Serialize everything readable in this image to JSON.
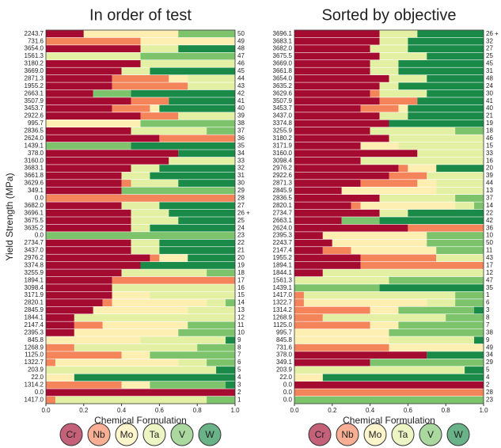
{
  "chart_data": [
    {
      "type": "stacked_barh",
      "title": "In order of test",
      "xlabel": "Chemical Formulation",
      "ylabel": "Yield Strength (MPa)",
      "xlim": [
        0,
        1
      ],
      "xticks": [
        {
          "value": 0,
          "label": "0.0"
        },
        {
          "value": 0.2,
          "label": "0.2"
        },
        {
          "value": 0.4,
          "label": "0.4"
        },
        {
          "value": 0.6,
          "label": "0.6"
        },
        {
          "value": 0.8,
          "label": "0.8"
        },
        {
          "value": 1,
          "label": "1.0"
        }
      ],
      "categories": [
        "2243.7",
        "731.6",
        "3654.0",
        "1561.3",
        "3180.2",
        "3669.0",
        "2871.3",
        "1955.2",
        "2663.1",
        "3507.9",
        "3453.7",
        "2922.6",
        "995.7",
        "2836.5",
        "2624.0",
        "1439.1",
        "378.0",
        "3160.0",
        "3683.1",
        "3661.8",
        "3629.6",
        "349.1",
        "0.0",
        "3682.0",
        "3696.1",
        "3675.5",
        "3635.2",
        "0.0",
        "2734.7",
        "3437.0",
        "2976.2",
        "3374.8",
        "3255.9",
        "1894.1",
        "3098.4",
        "3171.9",
        "2820.1",
        "2845.9",
        "1844.1",
        "2147.4",
        "2395.3",
        "845.8",
        "1268.9",
        "1125.0",
        "1322.7",
        "203.9",
        "22.0",
        "1314.2",
        "0.0",
        "1417.0"
      ],
      "ids": [
        "50",
        "49",
        "48",
        "47",
        "46",
        "45",
        "44",
        "43",
        "42",
        "41",
        "40",
        "39",
        "38",
        "37",
        "36",
        "35",
        "34",
        "33",
        "32",
        "31",
        "30",
        "29",
        "28",
        "27",
        "26 +",
        "25",
        "24",
        "23",
        "22",
        "21",
        "20",
        "19",
        "18",
        "17",
        "16",
        "15",
        "14",
        "13",
        "12",
        "11",
        "10",
        "9",
        "8",
        "7",
        "6",
        "5",
        "4",
        "3",
        "2",
        "1"
      ],
      "series": [
        {
          "name": "Cr",
          "color": "#a50a30",
          "values": [
            0.2,
            0,
            0.5,
            0,
            0.5,
            0.4,
            0.35,
            0.35,
            0.25,
            0.45,
            0.35,
            0.5,
            0,
            0.45,
            0.6,
            0,
            0.7,
            0.65,
            0.45,
            0.4,
            0.4,
            0.4,
            0,
            0.4,
            0.45,
            0.45,
            0.45,
            0,
            0.45,
            0.45,
            0.55,
            0.5,
            0.4,
            0.35,
            0.35,
            0.35,
            0.3,
            0.25,
            0.15,
            0.15,
            0.15,
            0,
            0,
            0,
            0,
            0,
            0,
            0,
            1,
            0
          ]
        },
        {
          "name": "Nb",
          "color": "#f4845a",
          "values": [
            0,
            0.5,
            0,
            0,
            0,
            0,
            0.3,
            0.4,
            0,
            0.2,
            0.2,
            0.2,
            0,
            0,
            0.4,
            0,
            0,
            0,
            0,
            0,
            0.05,
            0,
            1,
            0,
            0,
            0,
            0,
            0,
            0,
            0,
            0.05,
            0,
            0,
            0.65,
            0,
            0,
            0.05,
            0,
            0,
            0.15,
            0,
            0,
            0.15,
            0.4,
            0.05,
            0,
            0,
            0.4,
            0,
            0.05
          ]
        },
        {
          "name": "Mo",
          "color": "#fdefb2",
          "values": [
            0.5,
            0.5,
            0,
            0,
            0,
            0,
            0.1,
            0,
            0,
            0,
            0.05,
            0,
            0.5,
            0,
            0,
            0,
            0,
            0,
            0,
            0,
            0,
            0,
            0,
            0,
            0,
            0,
            0,
            0,
            0,
            0,
            0.15,
            0,
            0,
            0,
            0,
            0.2,
            0.5,
            0.5,
            0,
            0.45,
            0.55,
            0.5,
            0,
            0.15,
            0.65,
            0,
            0.15,
            0.15,
            0,
            0
          ]
        },
        {
          "name": "Ta",
          "color": "#e3f0a4",
          "values": [
            0,
            0,
            0.2,
            0.5,
            0.5,
            0.15,
            0.25,
            0.25,
            0,
            0,
            0,
            0.3,
            0,
            0.4,
            0,
            0,
            0,
            0.35,
            0.15,
            0.15,
            0.25,
            0,
            0,
            0.2,
            0.2,
            0.25,
            0.1,
            0,
            0.15,
            0.15,
            0,
            0,
            0.45,
            0,
            0.65,
            0.45,
            0.1,
            0.25,
            0.85,
            0,
            0,
            0.45,
            0.65,
            0,
            0.15,
            0.9,
            0,
            0,
            0,
            0.8
          ]
        },
        {
          "name": "V",
          "color": "#7cc36b",
          "values": [
            0.3,
            0,
            0,
            0.5,
            0,
            0,
            0,
            0,
            0.2,
            0,
            0,
            0,
            0.5,
            0.15,
            0,
            0.45,
            0,
            0,
            0,
            0,
            0,
            0.6,
            0,
            0,
            0,
            0,
            0,
            1,
            0,
            0,
            0,
            0,
            0.15,
            0,
            0,
            0,
            0.05,
            0,
            0,
            0.25,
            0.3,
            0,
            0.2,
            0.45,
            0.15,
            0,
            0,
            0.4,
            0,
            0.15
          ]
        },
        {
          "name": "W",
          "color": "#1a8a48",
          "values": [
            0,
            0,
            0.3,
            0,
            0,
            0.45,
            0,
            0,
            0.55,
            0.35,
            0.4,
            0,
            0,
            0,
            0,
            0.55,
            0.3,
            0,
            0.4,
            0.45,
            0.3,
            0,
            0,
            0.4,
            0.35,
            0.3,
            0.45,
            0,
            0.4,
            0.4,
            0.25,
            0.5,
            0,
            0,
            0,
            0,
            0,
            0,
            0,
            0,
            0,
            0.05,
            0,
            0,
            0,
            0.1,
            0.85,
            0.05,
            0,
            0
          ]
        }
      ]
    },
    {
      "type": "stacked_barh",
      "title": "Sorted by objective",
      "xlabel": "Chemical Formulation",
      "xlim": [
        0,
        1
      ],
      "xticks": [
        {
          "value": 0,
          "label": "0.0"
        },
        {
          "value": 0.2,
          "label": "0.2"
        },
        {
          "value": 0.4,
          "label": "0.4"
        },
        {
          "value": 0.6,
          "label": "0.6"
        },
        {
          "value": 0.8,
          "label": "0.8"
        },
        {
          "value": 1,
          "label": "1.0"
        }
      ],
      "categories": [
        "3696.1",
        "3683.1",
        "3682.0",
        "3675.5",
        "3669.0",
        "3661.8",
        "3654.0",
        "3635.2",
        "3629.6",
        "3507.9",
        "3453.7",
        "3437.0",
        "3374.8",
        "3255.9",
        "3180.2",
        "3171.9",
        "3160.0",
        "3098.4",
        "2976.2",
        "2922.6",
        "2871.3",
        "2845.9",
        "2836.5",
        "2820.1",
        "2734.7",
        "2663.1",
        "2624.0",
        "2395.3",
        "2243.7",
        "2147.4",
        "1955.2",
        "1894.1",
        "1844.1",
        "1561.3",
        "1439.1",
        "1417.0",
        "1322.7",
        "1314.2",
        "1268.9",
        "1125.0",
        "995.7",
        "845.8",
        "731.6",
        "378.0",
        "349.1",
        "203.9",
        "22.0",
        "0.0",
        "0.0",
        "0.0"
      ],
      "ids": [
        "26 +",
        "32",
        "27",
        "25",
        "45",
        "31",
        "48",
        "24",
        "30",
        "41",
        "40",
        "21",
        "19",
        "18",
        "46",
        "15",
        "33",
        "16",
        "20",
        "39",
        "44",
        "13",
        "37",
        "14",
        "22",
        "42",
        "36",
        "10",
        "50",
        "11",
        "43",
        "17",
        "12",
        "47",
        "35",
        "1",
        "6",
        "3",
        "8",
        "7",
        "38",
        "9",
        "49",
        "34",
        "29",
        "5",
        "4",
        "2",
        "28",
        "23"
      ],
      "series": [
        {
          "name": "Cr",
          "color": "#a50a30",
          "values": [
            0.45,
            0.45,
            0.4,
            0.45,
            0.4,
            0.4,
            0.5,
            0.45,
            0.4,
            0.45,
            0.35,
            0.45,
            0.5,
            0.4,
            0.5,
            0.35,
            0.65,
            0.35,
            0.55,
            0.5,
            0.35,
            0.25,
            0.45,
            0.3,
            0.45,
            0.25,
            0.6,
            0.15,
            0.2,
            0.15,
            0.35,
            0.35,
            0.15,
            0,
            0,
            0,
            0,
            0,
            0,
            0,
            0,
            0,
            0,
            0.7,
            0.4,
            0,
            0,
            1,
            0,
            0
          ]
        },
        {
          "name": "Nb",
          "color": "#f4845a",
          "values": [
            0,
            0,
            0,
            0,
            0,
            0,
            0,
            0,
            0.05,
            0.2,
            0.2,
            0,
            0,
            0,
            0,
            0,
            0,
            0,
            0.05,
            0.2,
            0.3,
            0,
            0,
            0.05,
            0,
            0,
            0.4,
            0,
            0,
            0.15,
            0.4,
            0.65,
            0,
            0,
            0,
            0.05,
            0.05,
            0.4,
            0.15,
            0.4,
            0,
            0,
            0.5,
            0,
            0,
            0,
            0,
            0,
            1,
            0
          ]
        },
        {
          "name": "Mo",
          "color": "#fdefb2",
          "values": [
            0,
            0,
            0,
            0,
            0,
            0,
            0,
            0,
            0,
            0,
            0.05,
            0,
            0,
            0,
            0,
            0.2,
            0,
            0,
            0.15,
            0,
            0.1,
            0.5,
            0,
            0.5,
            0,
            0,
            0,
            0.55,
            0.5,
            0.45,
            0,
            0,
            0,
            0,
            0,
            0,
            0.65,
            0.15,
            0,
            0.15,
            0.5,
            0.5,
            0.5,
            0,
            0,
            0,
            0.15,
            0,
            0,
            0
          ]
        },
        {
          "name": "Ta",
          "color": "#e3f0a4",
          "values": [
            0.2,
            0.15,
            0.2,
            0.25,
            0.15,
            0.15,
            0.2,
            0.1,
            0.25,
            0,
            0,
            0.15,
            0,
            0.45,
            0.5,
            0.45,
            0.35,
            0.65,
            0,
            0.3,
            0.25,
            0.25,
            0.4,
            0.1,
            0.15,
            0,
            0,
            0,
            0,
            0,
            0.25,
            0,
            0.85,
            0.5,
            0,
            0.8,
            0.15,
            0,
            0.65,
            0,
            0,
            0.45,
            0,
            0,
            0,
            0.9,
            0,
            0,
            0,
            0
          ]
        },
        {
          "name": "V",
          "color": "#7cc36b",
          "values": [
            0,
            0,
            0,
            0,
            0,
            0,
            0,
            0,
            0,
            0,
            0,
            0,
            0,
            0.15,
            0,
            0,
            0,
            0,
            0,
            0,
            0,
            0,
            0.15,
            0.05,
            0,
            0.2,
            0,
            0.3,
            0.3,
            0.25,
            0,
            0,
            0,
            0.5,
            0.45,
            0.15,
            0.15,
            0.4,
            0.2,
            0.45,
            0.5,
            0,
            0,
            0,
            0.6,
            0,
            0,
            0,
            0,
            1
          ]
        },
        {
          "name": "W",
          "color": "#1a8a48",
          "values": [
            0.35,
            0.4,
            0.4,
            0.3,
            0.45,
            0.45,
            0.3,
            0.45,
            0.3,
            0.35,
            0.4,
            0.4,
            0.5,
            0,
            0,
            0,
            0,
            0,
            0.25,
            0,
            0,
            0,
            0,
            0,
            0.4,
            0.55,
            0,
            0,
            0,
            0,
            0,
            0,
            0,
            0,
            0.55,
            0,
            0,
            0.05,
            0,
            0,
            0,
            0.05,
            0,
            0.3,
            0,
            0.1,
            0.85,
            0,
            0,
            0
          ]
        }
      ]
    }
  ]
}
